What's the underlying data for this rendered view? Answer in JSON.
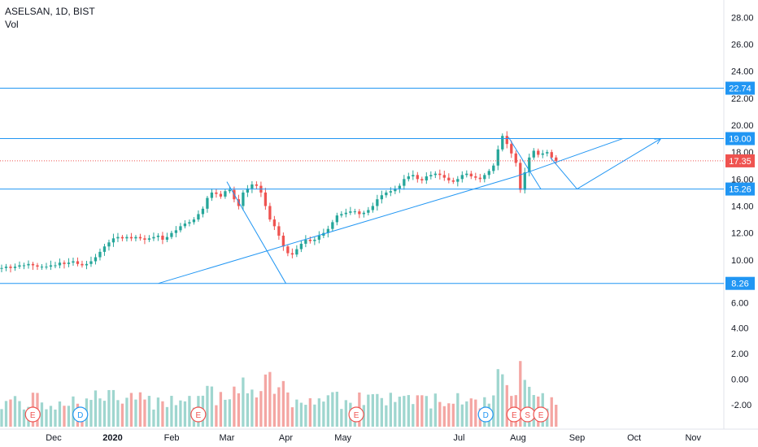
{
  "header": {
    "symbol_line": "ASELSAN, 1D, BIST",
    "indicator": "Vol"
  },
  "colors": {
    "up": "#26a69a",
    "down": "#ef5350",
    "vol_up": "#9fd6cf",
    "vol_down": "#f4a6a3",
    "line": "#2196f3",
    "price_line": "#ef5350",
    "grid": "#e0e3eb",
    "text": "#131722",
    "event_e": "#ef5350",
    "event_d": "#2196f3"
  },
  "chart_data": [
    {
      "type": "candlestick",
      "title": "ASELSAN, 1D, BIST",
      "price_axis_ticks": [
        "28.00",
        "26.00",
        "24.00",
        "22.00",
        "20.00",
        "18.00",
        "16.00",
        "14.00",
        "12.00",
        "10.00"
      ],
      "ylim": [
        8.0,
        28.8
      ],
      "time_axis_labels": [
        "Dec",
        "2020",
        "Feb",
        "Mar",
        "Apr",
        "May",
        "Jul",
        "Aug",
        "Sep",
        "Oct",
        "Nov"
      ],
      "horizontal_levels": [
        {
          "value": 22.74,
          "label": "22.74"
        },
        {
          "value": 19.0,
          "label": "19.00"
        },
        {
          "value": 15.26,
          "label": "15.26"
        },
        {
          "value": 8.26,
          "label": "8.26"
        }
      ],
      "last_price": {
        "value": 17.35,
        "label": "17.35"
      },
      "trend_lines": [
        {
          "from": {
            "date": "2020-01-25",
            "price": 8.26
          },
          "to": {
            "date": "2020-07-31",
            "price": 16.2
          }
        },
        {
          "from": {
            "date": "2020-07-31",
            "price": 16.2
          },
          "to": {
            "date": "2020-09-25",
            "price": 19.0
          }
        },
        {
          "from": {
            "date": "2020-03-01",
            "price": 15.8
          },
          "to": {
            "date": "2020-04-01",
            "price": 8.26
          }
        },
        {
          "from": {
            "date": "2020-07-27",
            "price": 19.1
          },
          "to": {
            "date": "2020-08-13",
            "price": 15.26
          }
        },
        {
          "from": {
            "date": "2020-08-18",
            "price": 17.6
          },
          "to": {
            "date": "2020-09-01",
            "price": 15.26
          }
        },
        {
          "from": {
            "date": "2020-09-01",
            "price": 15.26
          },
          "to": {
            "date": "2020-10-15",
            "price": 19.0
          }
        }
      ],
      "candles_close": [
        9.4,
        9.5,
        9.4,
        9.5,
        9.6,
        9.6,
        9.7,
        9.6,
        9.5,
        9.5,
        9.5,
        9.6,
        9.6,
        9.8,
        9.7,
        9.8,
        9.9,
        9.7,
        9.6,
        9.7,
        9.9,
        10.2,
        10.6,
        11.0,
        11.3,
        11.6,
        11.7,
        11.6,
        11.7,
        11.6,
        11.7,
        11.6,
        11.5,
        11.6,
        11.7,
        11.8,
        11.5,
        11.7,
        12.0,
        12.2,
        12.5,
        12.7,
        12.8,
        13.0,
        13.4,
        13.8,
        14.6,
        15.0,
        14.9,
        14.7,
        15.1,
        15.2,
        14.5,
        14.0,
        15.0,
        15.3,
        15.6,
        15.5,
        15.0,
        14.0,
        13.0,
        12.5,
        11.8,
        11.0,
        10.5,
        10.4,
        10.8,
        11.2,
        11.5,
        11.4,
        11.5,
        11.8,
        12.0,
        12.3,
        12.8,
        13.3,
        13.4,
        13.5,
        13.6,
        13.6,
        13.4,
        13.5,
        13.7,
        14.0,
        14.5,
        14.8,
        15.0,
        15.1,
        15.3,
        15.5,
        16.0,
        16.2,
        16.3,
        16.0,
        15.9,
        16.2,
        16.3,
        16.4,
        16.3,
        16.1,
        15.9,
        15.8,
        16.0,
        16.3,
        16.4,
        16.2,
        16.1,
        16.0,
        16.3,
        16.6,
        17.0,
        18.2,
        19.2,
        18.6,
        17.9,
        17.2,
        15.2,
        16.5,
        17.6,
        18.1,
        17.8,
        17.9,
        18.0,
        17.6,
        17.35
      ],
      "volume_axis_ticks": [
        "6.00",
        "4.00",
        "2.00",
        "0.00",
        "-2.00"
      ],
      "events": [
        {
          "label": "E",
          "date": "2019-11-20"
        },
        {
          "label": "D",
          "date": "2019-12-15"
        },
        {
          "label": "E",
          "date": "2020-02-15"
        },
        {
          "label": "E",
          "date": "2020-05-08"
        },
        {
          "label": "D",
          "date": "2020-07-15"
        },
        {
          "label": "E",
          "date": "2020-07-30"
        },
        {
          "label": "S",
          "date": "2020-08-06"
        },
        {
          "label": "E",
          "date": "2020-08-13"
        }
      ]
    }
  ]
}
